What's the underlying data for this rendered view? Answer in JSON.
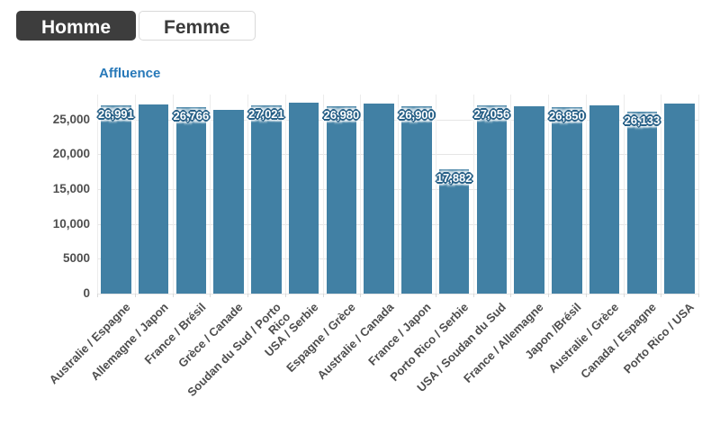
{
  "tabs": [
    {
      "label": "Homme",
      "active": true
    },
    {
      "label": "Femme",
      "active": false
    }
  ],
  "chart_data": {
    "type": "bar",
    "title": "Affluence",
    "xlabel": "",
    "ylabel": "",
    "categories": [
      "Australie / Espagne",
      "Allemagne / Japon",
      "France / Brésil",
      "Grèce / Canade",
      "Soudan du Sud / Porto Rico",
      "USA / Serbie",
      "Espagne / Grèce",
      "Australie / Canada",
      "France / Japon",
      "Porto Rico / Serbie",
      "USA / Soudan du Sud",
      "France / Allemagne",
      "Japon /Brésil",
      "Australie / Grèce",
      "Canada / Espagne",
      "Porto Rico / USA"
    ],
    "values": [
      26991,
      27150,
      26766,
      26400,
      27021,
      27400,
      26980,
      27300,
      26900,
      17882,
      27056,
      26880,
      26850,
      27000,
      26133,
      27320
    ],
    "display_labels": [
      "26,991",
      null,
      "26,766",
      null,
      "27,021",
      null,
      "26,980",
      null,
      "26,900",
      "17,882",
      "27,056",
      null,
      "26,850",
      null,
      "26,133",
      null
    ],
    "yticks": [
      "25,000",
      "20,000",
      "15,000",
      "10,000",
      "5000",
      "0"
    ],
    "ylim": [
      0,
      28600
    ],
    "grid": true,
    "legend": "none",
    "bar_color": "#4180a4",
    "label_outline_color": "#265f86",
    "title_color": "#2879b9"
  }
}
